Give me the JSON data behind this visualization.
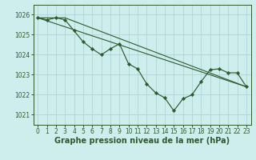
{
  "background_color": "#ceeeed",
  "grid_color": "#aed4d3",
  "line_color": "#2d5a2d",
  "xlabel": "Graphe pression niveau de la mer (hPa)",
  "xlabel_fontsize": 7,
  "tick_fontsize": 5.5,
  "ylim": [
    1020.5,
    1026.5
  ],
  "xlim": [
    -0.5,
    23.5
  ],
  "yticks": [
    1021,
    1022,
    1023,
    1024,
    1025,
    1026
  ],
  "xticks": [
    0,
    1,
    2,
    3,
    4,
    5,
    6,
    7,
    8,
    9,
    10,
    11,
    12,
    13,
    14,
    15,
    16,
    17,
    18,
    19,
    20,
    21,
    22,
    23
  ],
  "series1_x": [
    0,
    1,
    2,
    3,
    4,
    5,
    6,
    7,
    8,
    9,
    10,
    11,
    12,
    13,
    14,
    15,
    16,
    17,
    18,
    19,
    20,
    21,
    22,
    23
  ],
  "series1_y": [
    1025.85,
    1025.75,
    1025.85,
    1025.75,
    1025.2,
    1024.65,
    1024.3,
    1024.0,
    1024.3,
    1024.55,
    1023.55,
    1023.3,
    1022.55,
    1022.1,
    1021.85,
    1021.2,
    1021.8,
    1022.0,
    1022.65,
    1023.25,
    1023.3,
    1023.1,
    1023.1,
    1022.4
  ],
  "series2_x": [
    0,
    3,
    23
  ],
  "series2_y": [
    1025.85,
    1025.85,
    1022.4
  ],
  "series3_x": [
    0,
    23
  ],
  "series3_y": [
    1025.85,
    1022.4
  ]
}
